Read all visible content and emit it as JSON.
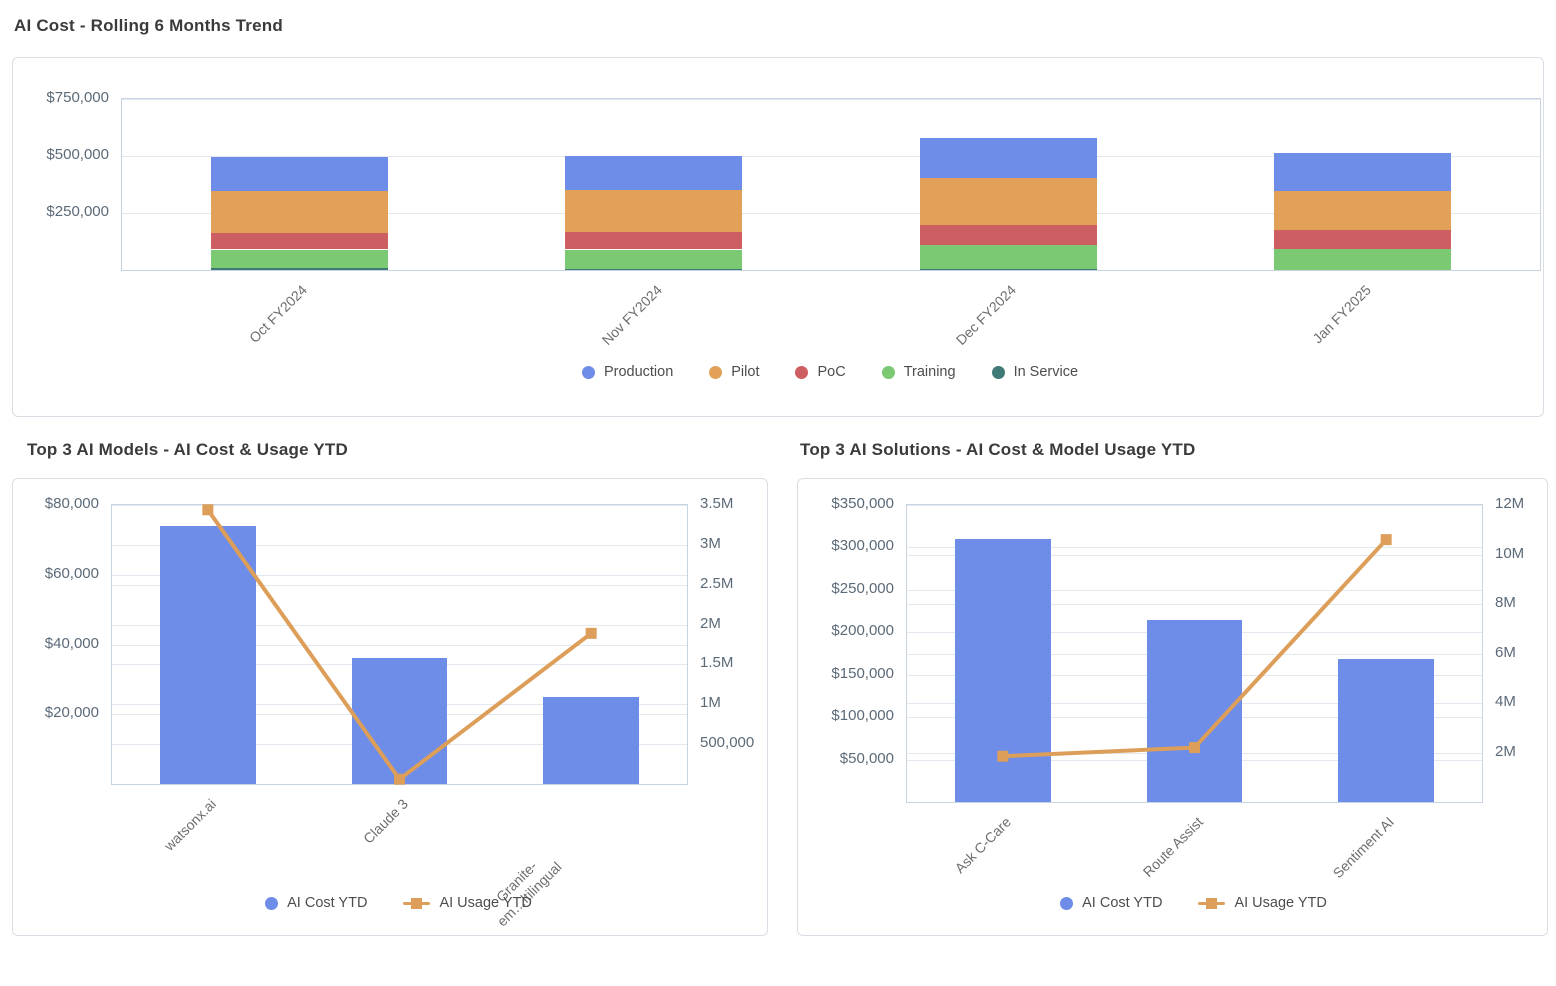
{
  "colors": {
    "production_blue": "#6d8de8",
    "pilot_orange": "#e2a159",
    "poc_red": "#cd5f62",
    "training_green": "#7bc973",
    "in_service_teal": "#3f7a77",
    "bar_blue": "#6d8de8",
    "line_orange": "#dd9e59",
    "title_text": "#3b3b3b",
    "axis_label": "#5b6a78",
    "category_label": "#6e6e6e",
    "legend_text": "#4d4d4d",
    "gridline": "#e4e9ef",
    "plot_border": "#c6d3e0"
  },
  "chart_data": [
    {
      "id": "trend",
      "type": "stacked-bar",
      "title": "AI Cost - Rolling 6 Months Trend",
      "categories": [
        "Oct FY2024",
        "Nov FY2024",
        "Dec FY2024",
        "Jan FY2025"
      ],
      "series": [
        {
          "name": "Production",
          "color": "#6d8de8",
          "values": [
            148000,
            148000,
            176000,
            166000
          ]
        },
        {
          "name": "Pilot",
          "color": "#e2a159",
          "values": [
            186000,
            184000,
            208000,
            172000
          ]
        },
        {
          "name": "PoC",
          "color": "#cd5f62",
          "values": [
            72000,
            76000,
            86000,
            86000
          ]
        },
        {
          "name": "Training",
          "color": "#7bc973",
          "values": [
            82000,
            84000,
            104000,
            90000
          ]
        },
        {
          "name": "In Service",
          "color": "#3f7a77",
          "values": [
            8000,
            6000,
            6000,
            0
          ]
        }
      ],
      "stack_order_bottom_to_top": [
        "In Service",
        "Training",
        "PoC",
        "Pilot",
        "Production"
      ],
      "left_axis": {
        "max": 750000,
        "ticks": [
          {
            "value": 250000,
            "label": "$250,000"
          },
          {
            "value": 500000,
            "label": "$500,000"
          },
          {
            "value": 750000,
            "label": "$750,000"
          }
        ]
      },
      "legend_position": "bottom-center",
      "grid": true
    },
    {
      "id": "models",
      "type": "bar-line-combo",
      "title": "Top 3 AI Models - AI Cost & Usage YTD",
      "categories": [
        "watsonx.ai",
        "Claude 3",
        "Granite-\nem…ltilingual"
      ],
      "bar_series": {
        "name": "AI Cost YTD",
        "color": "#6d8de8",
        "axis": "left",
        "values": [
          74000,
          36000,
          25000
        ]
      },
      "line_series": {
        "name": "AI Usage YTD",
        "color": "#dd9e59",
        "axis": "right",
        "values": [
          3440000,
          60000,
          1890000
        ]
      },
      "left_axis": {
        "max": 80000,
        "ticks": [
          {
            "value": 20000,
            "label": "$20,000"
          },
          {
            "value": 40000,
            "label": "$40,000"
          },
          {
            "value": 60000,
            "label": "$60,000"
          },
          {
            "value": 80000,
            "label": "$80,000"
          }
        ]
      },
      "right_axis": {
        "max": 3500000,
        "ticks": [
          {
            "value": 500000,
            "label": "500,000"
          },
          {
            "value": 1000000,
            "label": "1M"
          },
          {
            "value": 1500000,
            "label": "1.5M"
          },
          {
            "value": 2000000,
            "label": "2M"
          },
          {
            "value": 2500000,
            "label": "2.5M"
          },
          {
            "value": 3000000,
            "label": "3M"
          },
          {
            "value": 3500000,
            "label": "3.5M"
          }
        ]
      },
      "legend_position": "bottom-center",
      "grid": true
    },
    {
      "id": "solutions",
      "type": "bar-line-combo",
      "title": "Top 3 AI Solutions - AI Cost & Model Usage YTD",
      "categories": [
        "Ask C-Care",
        "Route Assist",
        "Sentiment AI"
      ],
      "bar_series": {
        "name": "AI Cost YTD",
        "color": "#6d8de8",
        "axis": "left",
        "values": [
          310000,
          215000,
          168000
        ]
      },
      "line_series": {
        "name": "AI Usage YTD",
        "color": "#dd9e59",
        "axis": "right",
        "values": [
          1850000,
          2200000,
          10600000
        ]
      },
      "left_axis": {
        "max": 350000,
        "ticks": [
          {
            "value": 50000,
            "label": "$50,000"
          },
          {
            "value": 100000,
            "label": "$100,000"
          },
          {
            "value": 150000,
            "label": "$150,000"
          },
          {
            "value": 200000,
            "label": "$200,000"
          },
          {
            "value": 250000,
            "label": "$250,000"
          },
          {
            "value": 300000,
            "label": "$300,000"
          },
          {
            "value": 350000,
            "label": "$350,000"
          }
        ]
      },
      "right_axis": {
        "max": 12000000,
        "ticks": [
          {
            "value": 2000000,
            "label": "2M"
          },
          {
            "value": 4000000,
            "label": "4M"
          },
          {
            "value": 6000000,
            "label": "6M"
          },
          {
            "value": 8000000,
            "label": "8M"
          },
          {
            "value": 10000000,
            "label": "10M"
          },
          {
            "value": 12000000,
            "label": "12M"
          }
        ]
      },
      "legend_position": "bottom-center",
      "grid": true
    }
  ]
}
